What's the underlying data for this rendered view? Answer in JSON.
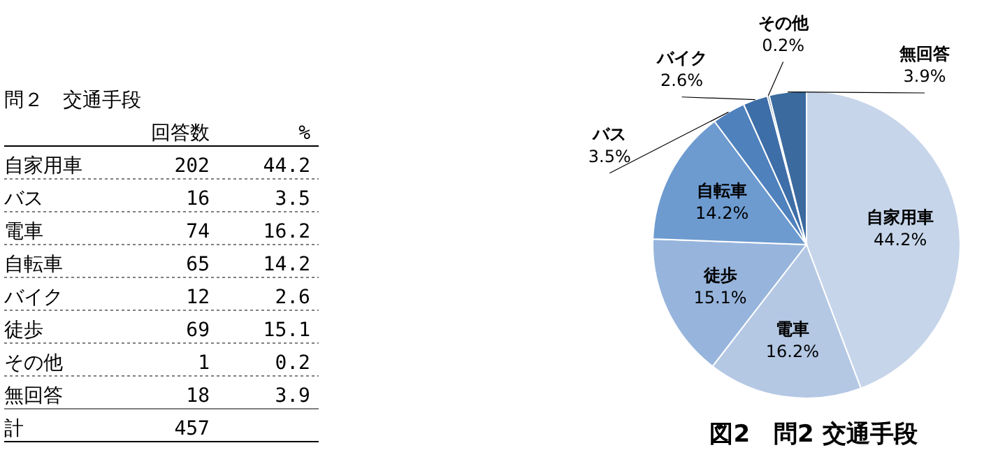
{
  "chart_data": [
    {
      "type": "other",
      "title": "問２　交通手段",
      "data_labels": true,
      "categories": [
        "自家用車",
        "バス",
        "電車",
        "自転車",
        "バイク",
        "徒歩",
        "その他",
        "無回答",
        "計"
      ],
      "series": [
        {
          "name": "回答数",
          "values": [
            202,
            16,
            74,
            65,
            12,
            69,
            1,
            18,
            457
          ]
        },
        {
          "name": "%",
          "values": [
            44.2,
            3.5,
            16.2,
            14.2,
            2.6,
            15.1,
            0.2,
            3.9,
            null
          ]
        }
      ]
    },
    {
      "type": "pie",
      "title": "図2　問2 交通手段",
      "categories": [
        "自家用車",
        "電車",
        "徒歩",
        "自転車",
        "バス",
        "バイク",
        "その他",
        "無回答"
      ],
      "values": [
        44.2,
        16.2,
        15.1,
        14.2,
        3.5,
        2.6,
        0.2,
        3.9
      ],
      "colors": [
        "#c6d5ea",
        "#b4c8e4",
        "#97b5dc",
        "#6d9bd0",
        "#4f81bd",
        "#3e6ea8",
        "#2c5281",
        "#3a6a9e"
      ],
      "value_labels": [
        "44.2%",
        "16.2%",
        "15.1%",
        "14.2%",
        "3.5%",
        "2.6%",
        "0.2%",
        "3.9%"
      ]
    }
  ]
}
